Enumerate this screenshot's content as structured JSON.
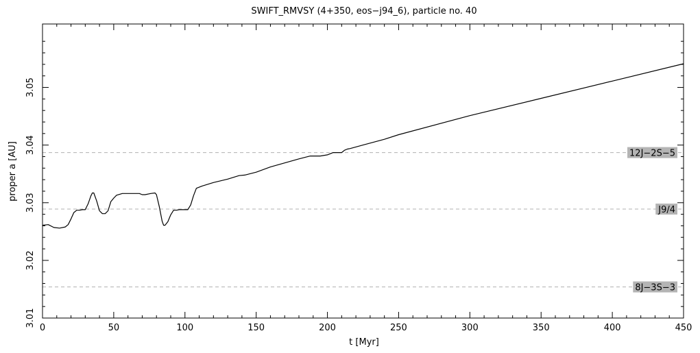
{
  "chart_data": {
    "type": "line",
    "title": "SWIFT_RMVSY (4+350, eos−j94_6), particle no. 40",
    "xlabel": "t [Myr]",
    "ylabel": "proper a [AU]",
    "xlim": [
      0,
      450
    ],
    "ylim": [
      3.01,
      3.061
    ],
    "x_ticks": [
      0,
      50,
      100,
      150,
      200,
      250,
      300,
      350,
      400,
      450
    ],
    "x_tick_labels": [
      "0",
      "50",
      "100",
      "150",
      "200",
      "250",
      "300",
      "350",
      "400",
      "450"
    ],
    "y_ticks": [
      3.01,
      3.02,
      3.03,
      3.04,
      3.05
    ],
    "y_tick_labels": [
      "3.01",
      "3.02",
      "3.03",
      "3.04",
      "3.05"
    ],
    "grid": false,
    "series": [
      {
        "x": [
          0,
          4,
          8,
          12,
          16,
          18,
          20,
          22,
          24,
          26,
          28,
          30,
          32,
          34,
          35,
          36,
          38,
          40,
          42,
          44,
          46,
          48,
          50,
          52,
          56,
          60,
          64,
          68,
          70,
          72,
          76,
          79,
          80,
          82,
          84,
          85,
          86,
          88,
          90,
          92,
          94,
          96,
          98,
          100,
          102,
          104,
          106,
          108,
          112,
          120,
          130,
          138,
          142,
          150,
          160,
          170,
          180,
          188,
          195,
          200,
          204,
          210,
          212,
          214,
          216,
          225,
          240,
          250,
          300,
          350,
          400,
          450
        ],
        "y": [
          3.0261,
          3.0262,
          3.0257,
          3.0256,
          3.0258,
          3.0262,
          3.0272,
          3.0283,
          3.0287,
          3.0287,
          3.0288,
          3.0288,
          3.0298,
          3.0312,
          3.0317,
          3.0317,
          3.0303,
          3.0286,
          3.0281,
          3.0281,
          3.0286,
          3.0302,
          3.0308,
          3.0313,
          3.0316,
          3.0316,
          3.0316,
          3.0316,
          3.0314,
          3.0314,
          3.0316,
          3.0317,
          3.0314,
          3.0293,
          3.0268,
          3.0261,
          3.0261,
          3.0267,
          3.0279,
          3.0287,
          3.0287,
          3.0288,
          3.0288,
          3.0288,
          3.0288,
          3.0296,
          3.0312,
          3.0325,
          3.0329,
          3.0335,
          3.0341,
          3.0347,
          3.0348,
          3.0353,
          3.0362,
          3.0369,
          3.0376,
          3.0381,
          3.0381,
          3.0383,
          3.0387,
          3.0387,
          3.0391,
          3.0393,
          3.0394,
          3.04,
          3.041,
          3.0418,
          3.0451,
          3.0481,
          3.0511,
          3.0541
        ]
      }
    ],
    "reference_lines": [
      {
        "label": "12J−2S−5",
        "y": 3.0387,
        "style": "dashed"
      },
      {
        "label": "J9/4",
        "y": 3.0289,
        "style": "dashed"
      },
      {
        "label": "8J−3S−3",
        "y": 3.0154,
        "style": "dashed"
      }
    ],
    "colors": {
      "line": "#000000",
      "axes": "#000000",
      "reference_line": "#b0b0b0",
      "label_box": "#b4b4b4",
      "background": "#ffffff"
    }
  }
}
